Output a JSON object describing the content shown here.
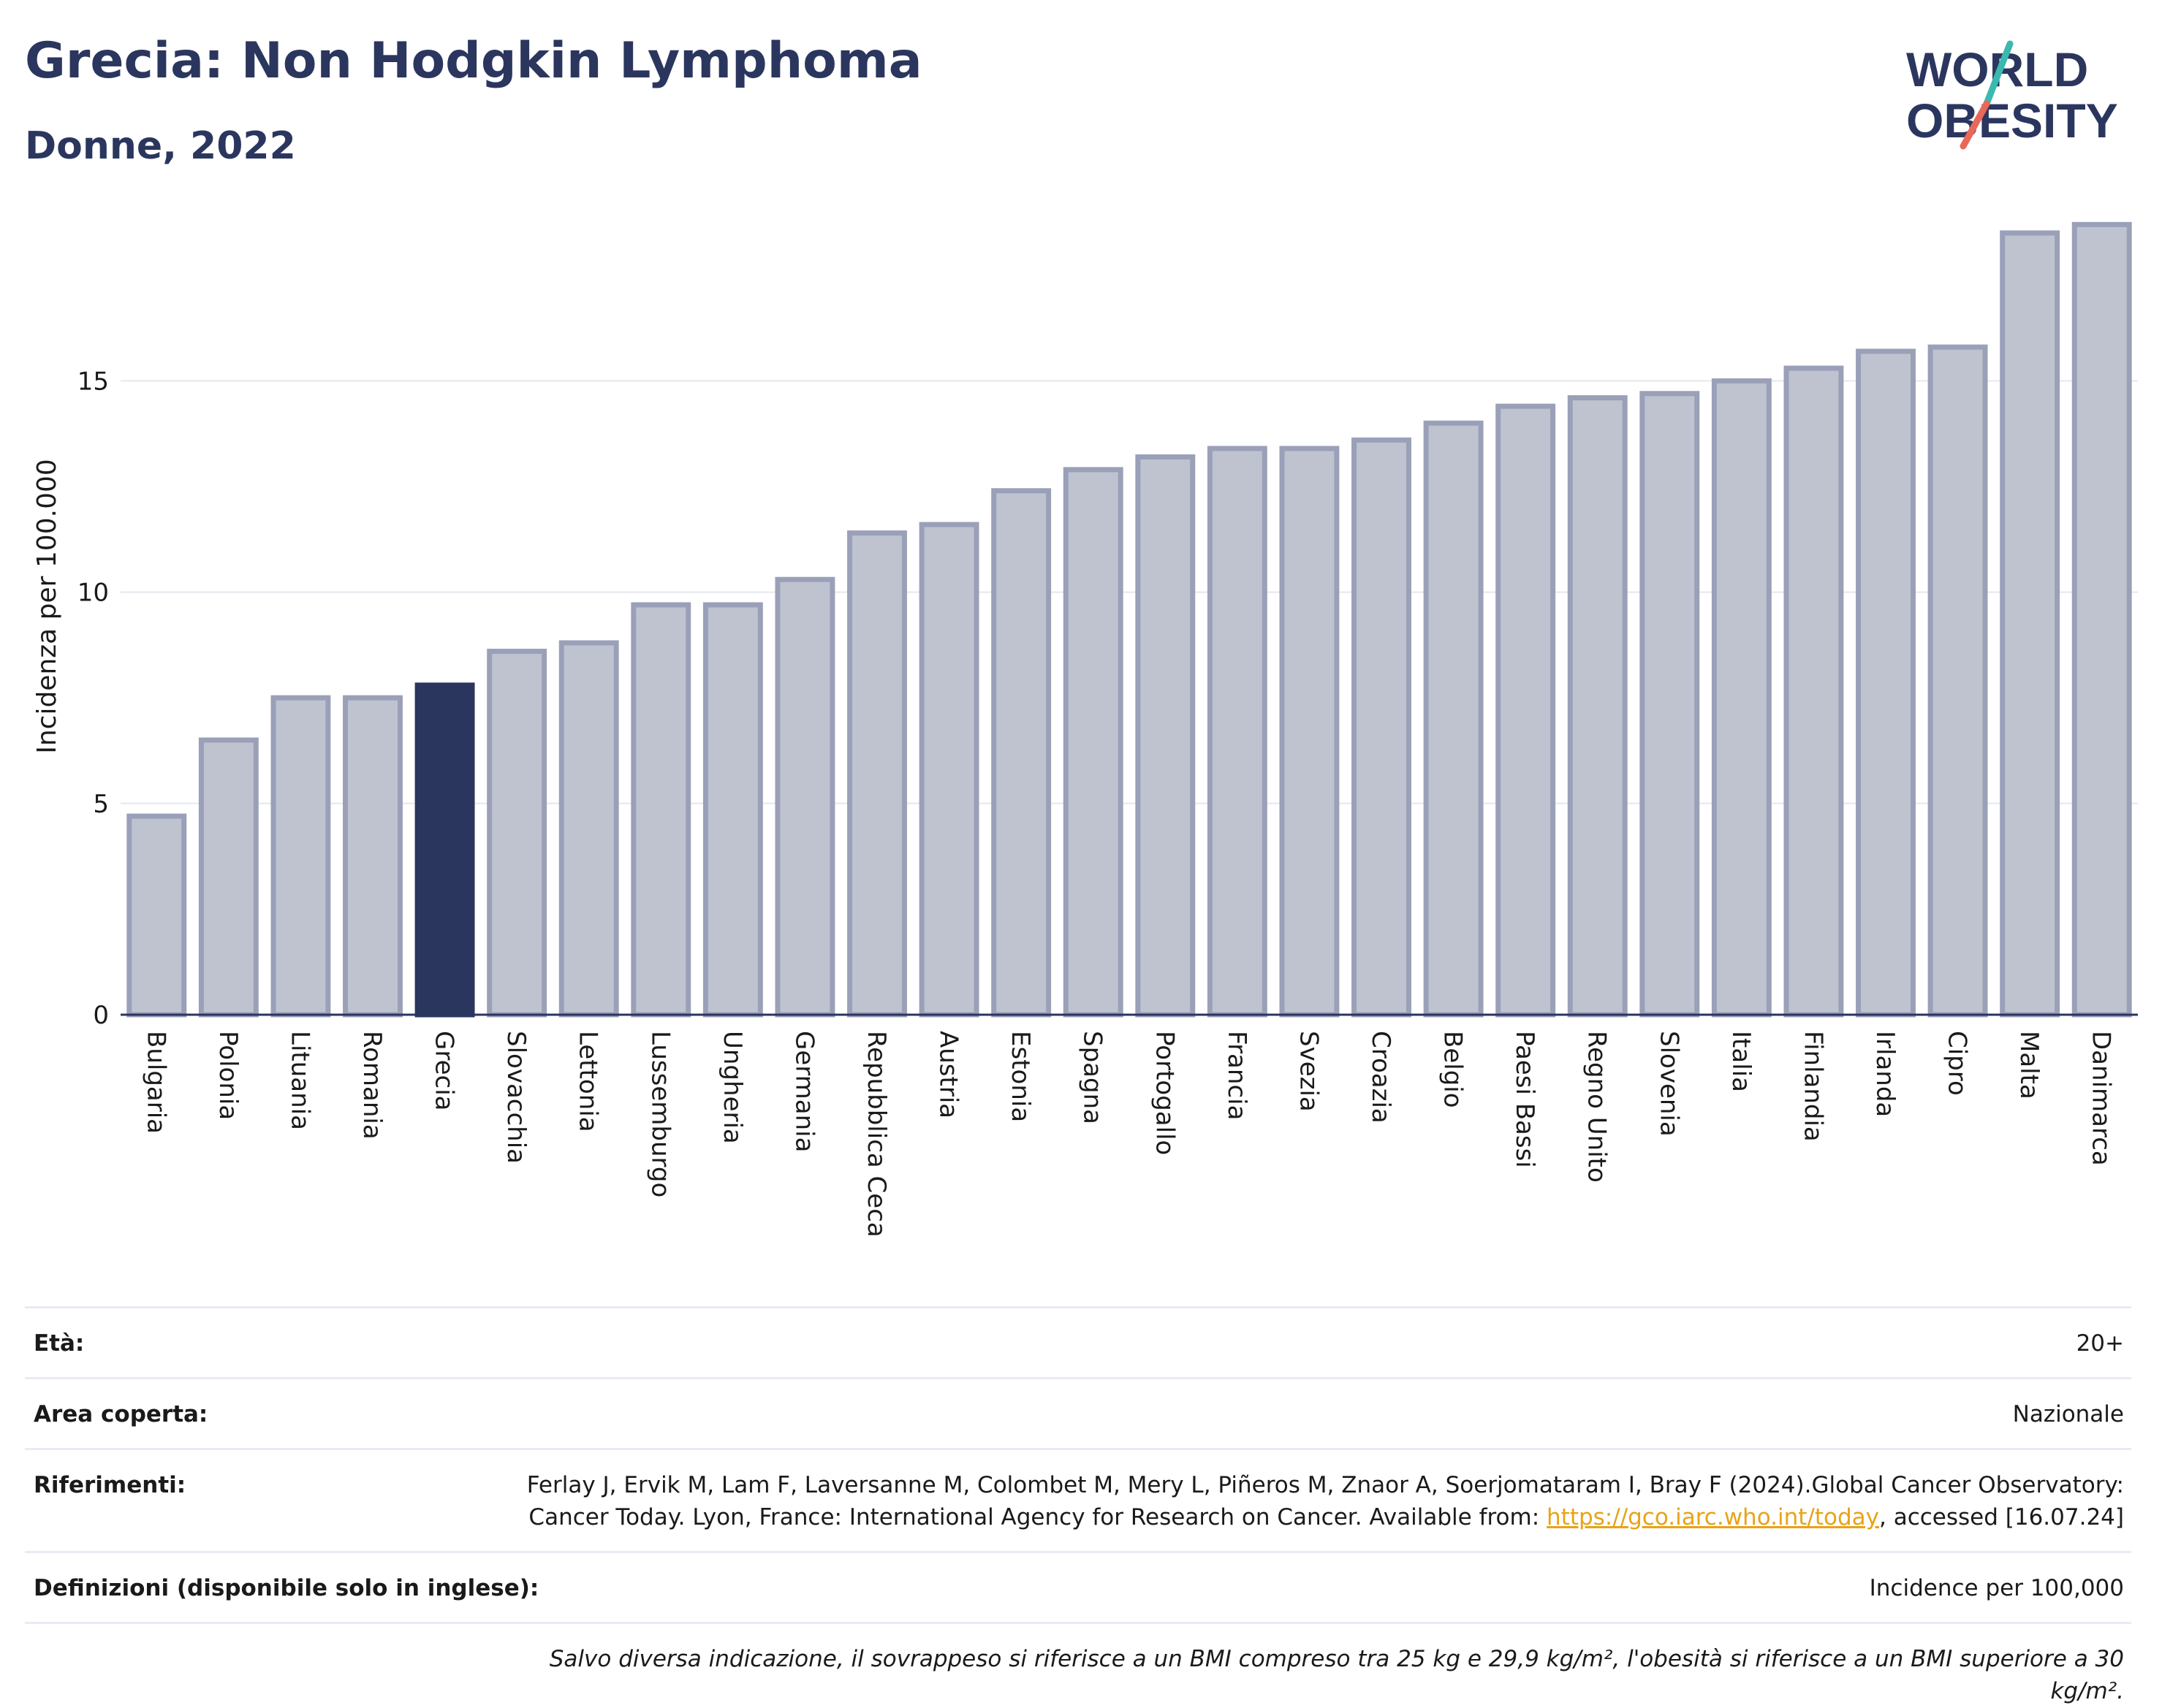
{
  "header": {
    "title": "Grecia: Non Hodgkin Lymphoma",
    "subtitle": "Donne, 2022"
  },
  "logo": {
    "line1": "WORLD",
    "line2": "OBESITY",
    "colors": {
      "text": "#2b365f",
      "slash_top": "#3bb8b0",
      "slash_bottom": "#e8685a"
    }
  },
  "colors": {
    "bar_fill": "#bfc3d0",
    "bar_stroke": "#9aa0b8",
    "highlight": "#2b365f",
    "grid": "#e6e8ef",
    "axis": "#2b365f"
  },
  "chart_data": {
    "type": "bar",
    "ylabel": "Incidenza per 100.000",
    "xlabel": "",
    "ylim": [
      0,
      19
    ],
    "yticks": [
      0,
      5,
      10,
      15
    ],
    "grid": true,
    "highlight": "Grecia",
    "categories": [
      "Bulgaria",
      "Polonia",
      "Lituania",
      "Romania",
      "Grecia",
      "Slovacchia",
      "Lettonia",
      "Lussemburgo",
      "Ungheria",
      "Germania",
      "Repubblica Ceca",
      "Austria",
      "Estonia",
      "Spagna",
      "Portogallo",
      "Francia",
      "Svezia",
      "Croazia",
      "Belgio",
      "Paesi Bassi",
      "Regno Unito",
      "Slovenia",
      "Italia",
      "Finlandia",
      "Irlanda",
      "Cipro",
      "Malta",
      "Danimarca"
    ],
    "values": [
      4.7,
      6.5,
      7.5,
      7.5,
      7.8,
      8.6,
      8.8,
      9.7,
      9.7,
      10.3,
      11.4,
      11.6,
      12.4,
      12.9,
      13.2,
      13.4,
      13.4,
      13.6,
      14.0,
      14.4,
      14.6,
      14.7,
      15.0,
      15.3,
      15.7,
      15.8,
      18.5,
      18.7
    ]
  },
  "info": {
    "age_label": "Età:",
    "age_value": "20+",
    "area_label": "Area coperta:",
    "area_value": "Nazionale",
    "refs_label": "Riferimenti:",
    "refs_text": "Ferlay J, Ervik M, Lam F, Laversanne M, Colombet M, Mery L, Piñeros M, Znaor A, Soerjomataram I, Bray F (2024).Global Cancer Observatory: Cancer Today. Lyon, France: International Agency for Research on Cancer. Available from: ",
    "refs_link": "https://gco.iarc.who.int/today",
    "refs_after": ", accessed [16.07.24]",
    "defs_label": "Definizioni (disponibile solo in inglese):",
    "defs_value": "Incidence per 100,000",
    "note": "Salvo diversa indicazione, il sovrappeso si riferisce a un BMI compreso tra 25 kg e 29,9 kg/m², l'obesità si riferisce a un BMI superiore a 30 kg/m²."
  }
}
